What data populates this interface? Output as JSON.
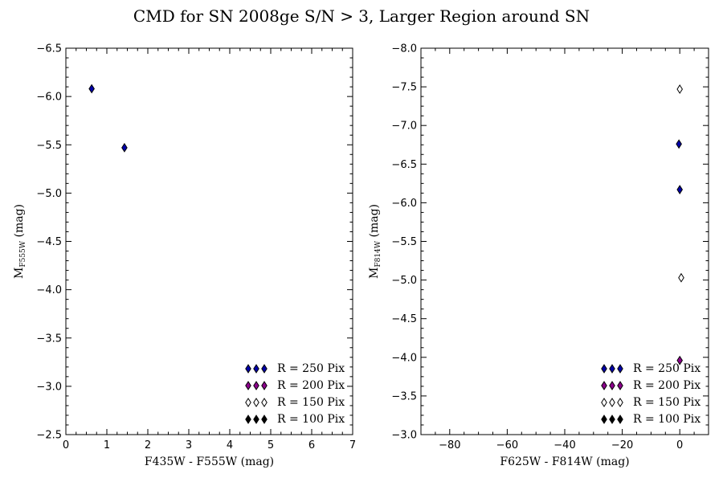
{
  "figure": {
    "title": "CMD for SN 2008ge S/N > 3, Larger Region around SN"
  },
  "chart_data": [
    {
      "type": "scatter",
      "xlabel": "F435W - F555W (mag)",
      "ylabel_main": "M",
      "ylabel_sub": "F555W",
      "ylabel_unit": " (mag)",
      "xlim": [
        0,
        7
      ],
      "ylim": [
        -6.5,
        -2.5
      ],
      "y_inverted": true,
      "xticks": [
        0,
        1,
        2,
        3,
        4,
        5,
        6,
        7
      ],
      "xtick_labels": [
        "0",
        "1",
        "2",
        "3",
        "4",
        "5",
        "6",
        "7"
      ],
      "yticks": [
        -6.5,
        -6.0,
        -5.5,
        -5.0,
        -4.5,
        -4.0,
        -3.5,
        -3.0,
        -2.5
      ],
      "ytick_labels": [
        "−6.5",
        "−6.0",
        "−5.5",
        "−5.0",
        "−4.5",
        "−4.0",
        "−3.5",
        "−3.0",
        "−2.5"
      ],
      "legend_position": "lower-right",
      "series": [
        {
          "name": "R = 250 Pix",
          "color": "#0000aa",
          "points": [
            [
              0.63,
              -6.08
            ],
            [
              1.43,
              -5.47
            ]
          ]
        },
        {
          "name": "R = 200 Pix",
          "color": "#8b008b",
          "points": []
        },
        {
          "name": "R = 150 Pix",
          "color": "#ffffff",
          "points": []
        },
        {
          "name": "R = 100 Pix",
          "color": "#000000",
          "points": []
        }
      ]
    },
    {
      "type": "scatter",
      "xlabel": "F625W - F814W (mag)",
      "ylabel_main": "M",
      "ylabel_sub": "F814W",
      "ylabel_unit": " (mag)",
      "xlim": [
        -90,
        10
      ],
      "ylim": [
        -8.0,
        -3.0
      ],
      "y_inverted": true,
      "xticks": [
        -80,
        -60,
        -40,
        -20,
        0
      ],
      "xtick_labels": [
        "−80",
        "−60",
        "−40",
        "−20",
        "0"
      ],
      "yticks": [
        -8.0,
        -7.5,
        -7.0,
        -6.5,
        -6.0,
        -5.5,
        -5.0,
        -4.5,
        -4.0,
        -3.5,
        -3.0
      ],
      "ytick_labels": [
        "−8.0",
        "−7.5",
        "−7.0",
        "−6.5",
        "−6.0",
        "−5.5",
        "−5.0",
        "−4.5",
        "−4.0",
        "−3.5",
        "−3.0"
      ],
      "legend_position": "lower-right",
      "series": [
        {
          "name": "R = 250 Pix",
          "color": "#0000aa",
          "points": [
            [
              -0.3,
              -6.76
            ],
            [
              0.0,
              -6.17
            ]
          ]
        },
        {
          "name": "R = 200 Pix",
          "color": "#8b008b",
          "points": [
            [
              0.0,
              -3.96
            ]
          ]
        },
        {
          "name": "R = 150 Pix",
          "color": "#ffffff",
          "points": [
            [
              0.0,
              -7.47
            ],
            [
              0.5,
              -5.03
            ]
          ]
        },
        {
          "name": "R = 100 Pix",
          "color": "#000000",
          "points": []
        }
      ]
    }
  ]
}
